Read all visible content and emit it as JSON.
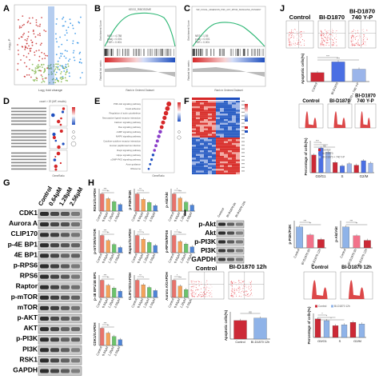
{
  "panel_labels": [
    "A",
    "B",
    "C",
    "D",
    "E",
    "F",
    "G",
    "H",
    "I",
    "J"
  ],
  "panel_a": {
    "xlabel": "Log₂ fold change",
    "ylabel": "-Log₁₀ P"
  },
  "panel_b": {
    "title": "KEGG_RIBOSOME",
    "ylabel": "Enrichment Score",
    "ylabel2": "Ranked list metric",
    "xlabel": "Rank in Ordered Dataset",
    "stats": [
      "NES = 4.788",
      "p.adj = 0.001",
      "FDR = 0.001"
    ],
    "ticks": [
      "10,000",
      "20,000",
      "30,000"
    ]
  },
  "panel_c": {
    "title": "WP_FOCAL_ADHESION_PI3K_AKT_MTOR_SIGNALING_PATHWAY",
    "ylabel": "Enrichment Score",
    "ylabel2": "Ranked list metric",
    "xlabel": "Rank in Ordered Dataset",
    "stats": [
      "NES = 1.55",
      "p.adj = 0.001",
      "FDR = 0.001"
    ],
    "ticks": [
      "10,000",
      "20,000",
      "30,000"
    ]
  },
  "panel_d": {
    "xlabel": "GeneRatio",
    "title": "count > 20 (MF, results)"
  },
  "panel_e": {
    "xlabel": "GeneRatio",
    "terms": [
      "PI3K-Akt signaling pathway",
      "Focal adhesion",
      "Regulation of actin cytoskeleton",
      "Neuroactive ligand-receptor interaction",
      "Calcium signaling pathway",
      "Ras signaling pathway",
      "cAMP signaling pathway",
      "MAPK signaling pathway",
      "Cytokine-cytokine receptor interaction",
      "Human papillomavirus infection",
      "Rap1 signaling pathway",
      "Hippo signaling pathway",
      "cGMP-PKG signaling pathway",
      "Axon guidance",
      "Ribosome"
    ]
  },
  "panel_g": {
    "header": [
      "Control",
      "0.64μM",
      "1.28μM",
      "2.56μM"
    ],
    "proteins": [
      "CDK1",
      "Aurora A",
      "CLIP170",
      "p-4E BP1",
      "4E BP1",
      "p-RPS6",
      "RPS6",
      "Raptor",
      "p-mTOR",
      "mTOR",
      "p-AKT",
      "AKT",
      "p-PI3K",
      "PI3K",
      "RSK1",
      "GAPDH"
    ]
  },
  "panel_h": {
    "ylabels": [
      "RSK1/GAPDH",
      "p-PI3K/PI3K",
      "p-Akt/Akt",
      "p-mTOR/mTOR",
      "Raptor/GAPDH",
      "p-RPS6/RPS6",
      "p-4E BP1/4E BP1",
      "CLIP170/GAPDH",
      "Aurora A/GAPDH",
      "CDK1/GAPDH"
    ],
    "xcats": [
      "Control",
      "0.64μM",
      "1.28μM",
      "2.56μM"
    ],
    "sig": [
      "***",
      "**",
      "*",
      "ns"
    ]
  },
  "panel_i": {
    "wb_header": [
      "Control",
      "BI-D1870 6h",
      "BI-D1870 12h"
    ],
    "proteins": [
      "p-Akt",
      "Akt",
      "p-PI3K",
      "PI3K",
      "GAPDH"
    ],
    "bar_ylabels": [
      "p-PI3K/PI3K",
      "p-Akt/Akt"
    ],
    "bar_xcats": [
      "Control",
      "BI-D1870 6h",
      "BI-D1870 12h"
    ],
    "flow_titles": [
      "Control",
      "BI-D1870 12h"
    ],
    "apoptotic_ylabel": "Apoptotic cells(%)",
    "apoptotic_xcats": [
      "Control",
      "BI-D1870 12h"
    ],
    "apoptotic_sig": "ns",
    "cycle_ylabel": "Percentage of cells(%)",
    "cycle_xcats": [
      "G0/G1",
      "S",
      "G2/M"
    ],
    "legend": [
      "Control",
      "BI-D1870 12h"
    ]
  },
  "panel_j": {
    "flow_titles": [
      "Control",
      "BI-D1870",
      "BI-D1870\n740 Y-P"
    ],
    "apoptotic_ylabel": "Apoptotic cells(%)",
    "apoptotic_xcats": [
      "Control",
      "BI-D1870",
      "BI-D1870 + 740 Y-P"
    ],
    "hist_titles": [
      "Control",
      "BI-D1870",
      "BI-D1870\n740 Y-P"
    ],
    "cycle_ylabel": "Percentage of cells(%)",
    "cycle_xcats": [
      "G0/G1",
      "S",
      "G2/M"
    ],
    "legend": [
      "Control",
      "BI-D1870",
      "BI-D1870 + 740 Y-P"
    ],
    "sig": [
      "***",
      "*",
      "ns"
    ]
  },
  "colors": {
    "red": "#d62728",
    "blue": "#1f4fbf",
    "pink": "#ff7f7f",
    "green": "#2ca02c",
    "gsea_line": "#2bb673",
    "bar_pink": "#f2728a",
    "bar_blue": "#8fb3e8",
    "bar_red": "#cc2936"
  }
}
